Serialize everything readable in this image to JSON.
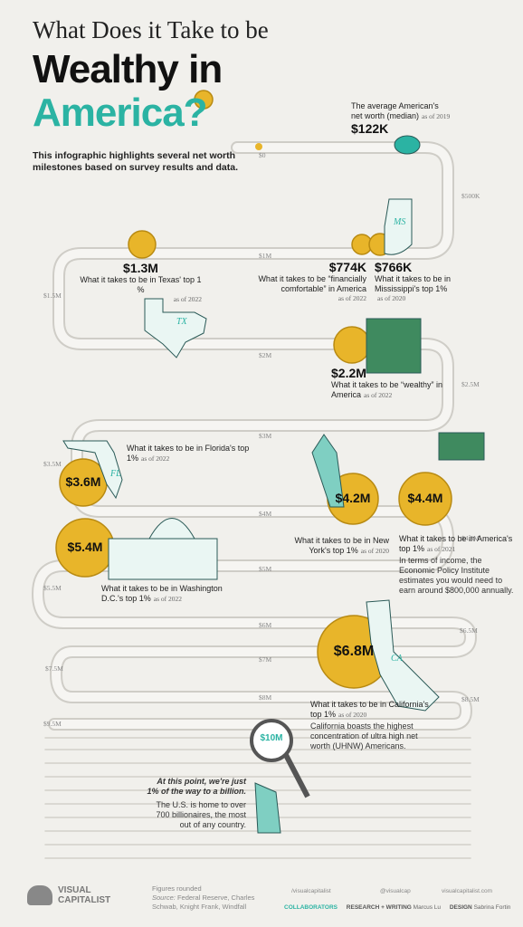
{
  "header": {
    "line1": "What Does it Take to be",
    "line2": "Wealthy in",
    "line3": "America?"
  },
  "intro": "This infographic highlights several net worth milestones based on survey results and data.",
  "track_labels": [
    "$0",
    "$500K",
    "$1M",
    "$1.5M",
    "$2M",
    "$2.5M",
    "$3M",
    "$3.5M",
    "$4M",
    "$4.5M",
    "$5M",
    "$5.5M",
    "$6M",
    "$6.5M",
    "$7M",
    "$7.5M",
    "$8M",
    "$8.5M",
    "$9.5M"
  ],
  "milestones": [
    {
      "amount": "$122K",
      "description": "The average American's net worth (median)",
      "date": "as of 2019"
    },
    {
      "amount": "$774K",
      "description": "What it takes to be “financially comfortable” in America",
      "date": "as of 2022"
    },
    {
      "amount": "$766K",
      "description": "What it takes to be in Mississippi's top 1%",
      "date": "as of 2020"
    },
    {
      "amount": "$1.3M",
      "description": "What it takes to be in Texas' top 1 %",
      "date": "as of 2022"
    },
    {
      "amount": "$2.2M",
      "description": "What it takes to be “wealthy” in America",
      "date": "as of 2022"
    },
    {
      "amount": "$3.6M",
      "description": "What it takes to be in Florida's top 1%",
      "date": "as of 2022"
    },
    {
      "amount": "$4.2M",
      "description": "What it takes to be in New York's top 1%",
      "date": "as of 2020"
    },
    {
      "amount": "$4.4M",
      "description": "What it takes to be in America's top 1%",
      "date": "as of 2021",
      "note": "In terms of income, the Economic Policy Institute estimates you would need to earn around $800,000 annually."
    },
    {
      "amount": "$5.4M",
      "description": "What it takes to be in Washington D.C.'s top 1%",
      "date": "as of 2022"
    },
    {
      "amount": "$6.8M",
      "description": "What it takes to be in California's top 1%",
      "date": "as of 2020",
      "note": "California boasts the highest concentration of ultra high net worth (UHNW) Americans."
    },
    {
      "amount": "$10M",
      "headline": "At this point, we're just 1% of the way to a billion.",
      "note": "The U.S. is home to over 700 billionaires, the most out of any country."
    }
  ],
  "states": [
    "MS",
    "TX",
    "FL",
    "CA"
  ],
  "footer": {
    "brand_line1": "VISUAL",
    "brand_line2": "CAPITALIST",
    "figures": "Figures rounded",
    "source_label": "Source:",
    "source": "Federal Reserve, Charles Schwab, Knight Frank, Windfall",
    "social": [
      "/visualcapitalist",
      "@visualcap",
      "visualcapitalist.com"
    ],
    "collaborators": "COLLABORATORS",
    "research_label": "RESEARCH + WRITING",
    "research": "Marcus Lu",
    "design_label": "DESIGN",
    "design": "Sabrina Fortin"
  }
}
